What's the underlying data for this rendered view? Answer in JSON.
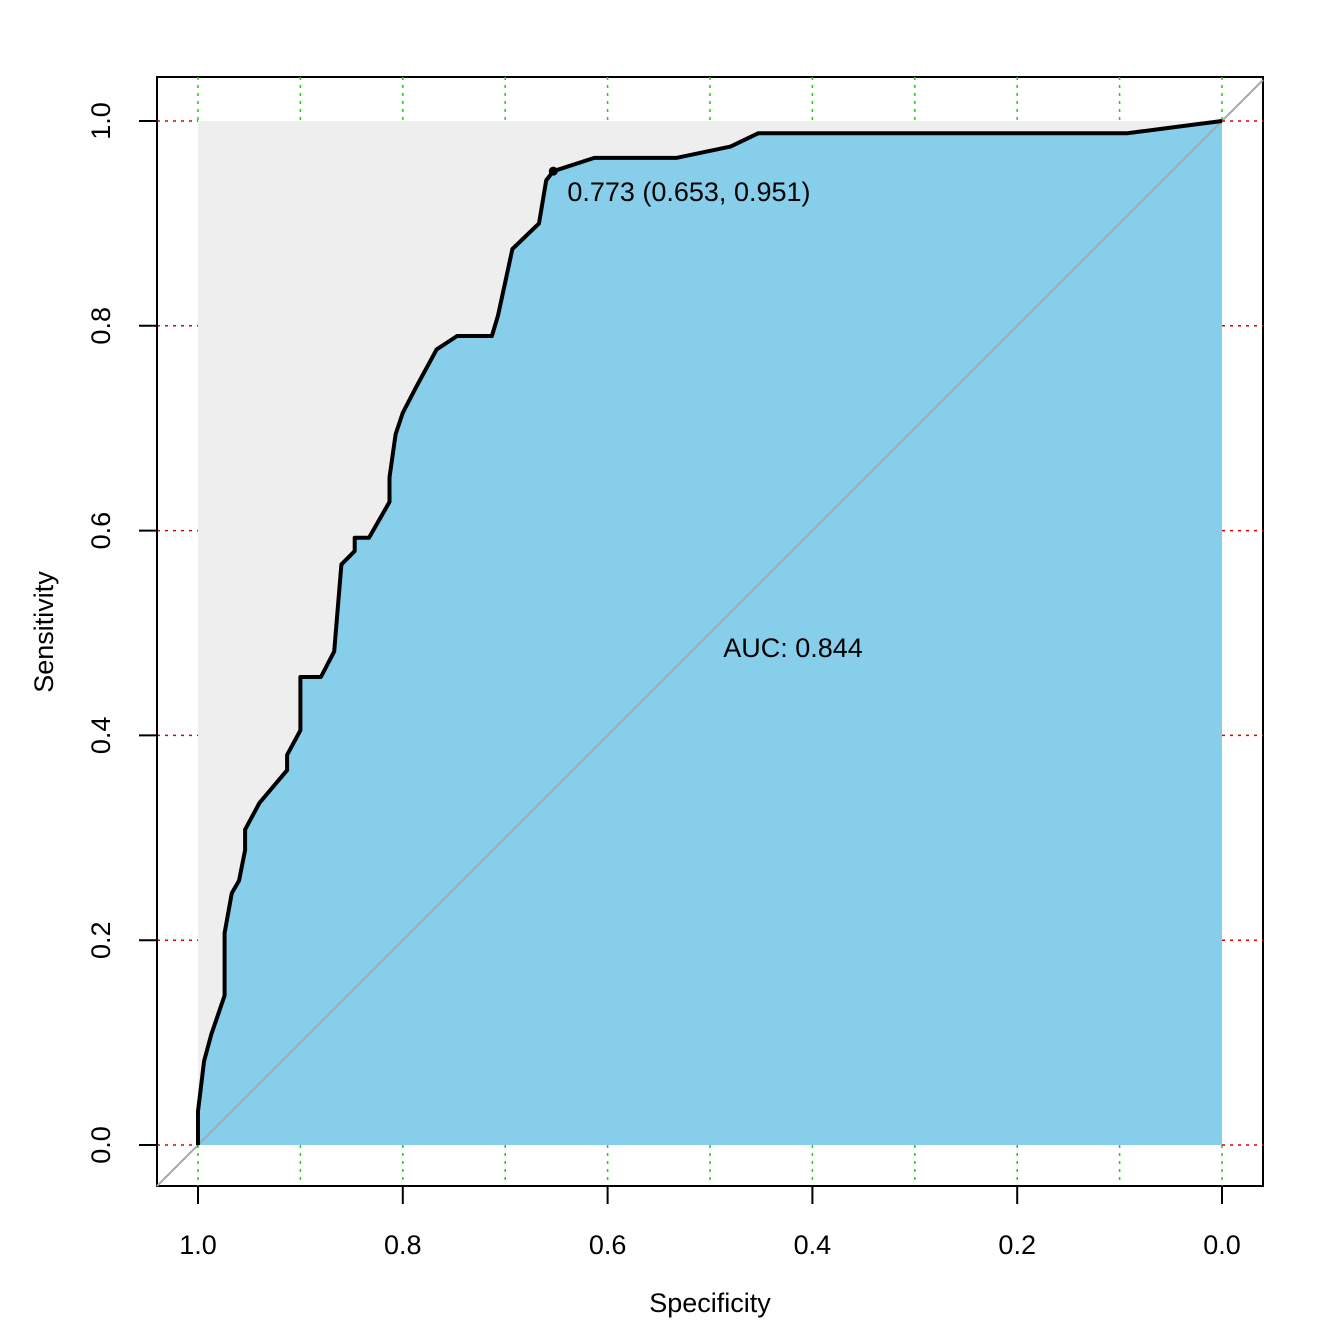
{
  "chart_data": {
    "type": "line",
    "xlabel": "Specificity",
    "ylabel": "Sensitivity",
    "xlim": [
      1.0,
      0.0
    ],
    "ylim": [
      0.0,
      1.0
    ],
    "x_reversed": true,
    "x_ticks": [
      "1.0",
      "0.8",
      "0.6",
      "0.4",
      "0.2",
      "0.0"
    ],
    "y_ticks": [
      "0.0",
      "0.2",
      "0.4",
      "0.6",
      "0.8",
      "1.0"
    ],
    "grid": true,
    "grid_x_values": [
      1.0,
      0.9,
      0.8,
      0.7,
      0.6,
      0.5,
      0.4,
      0.3,
      0.2,
      0.1,
      0.0
    ],
    "grid_y_values": [
      0.0,
      0.2,
      0.4,
      0.6,
      0.8,
      1.0
    ],
    "auc_text": "AUC: 0.844",
    "threshold_point": {
      "specificity": 0.653,
      "sensitivity": 0.951
    },
    "threshold_text": "0.773 (0.653, 0.951)",
    "colors": {
      "auc_fill": "#87CEEB",
      "background_fill": "#EEEEEE",
      "curve": "#000000",
      "diagonal": "#A9A9A9",
      "grid_x": "#00DD00",
      "grid_y": "#DD0000"
    },
    "series": [
      {
        "points": [
          [
            1.0,
            0.0
          ],
          [
            1.0,
            0.033
          ],
          [
            0.994,
            0.082
          ],
          [
            0.987,
            0.108
          ],
          [
            0.974,
            0.146
          ],
          [
            0.974,
            0.207
          ],
          [
            0.967,
            0.246
          ],
          [
            0.96,
            0.258
          ],
          [
            0.954,
            0.288
          ],
          [
            0.954,
            0.308
          ],
          [
            0.94,
            0.334
          ],
          [
            0.913,
            0.366
          ],
          [
            0.913,
            0.381
          ],
          [
            0.9,
            0.405
          ],
          [
            0.9,
            0.457
          ],
          [
            0.88,
            0.457
          ],
          [
            0.867,
            0.482
          ],
          [
            0.86,
            0.567
          ],
          [
            0.847,
            0.58
          ],
          [
            0.847,
            0.593
          ],
          [
            0.833,
            0.593
          ],
          [
            0.813,
            0.628
          ],
          [
            0.813,
            0.652
          ],
          [
            0.807,
            0.694
          ],
          [
            0.8,
            0.715
          ],
          [
            0.787,
            0.74
          ],
          [
            0.767,
            0.777
          ],
          [
            0.747,
            0.79
          ],
          [
            0.713,
            0.79
          ],
          [
            0.707,
            0.81
          ],
          [
            0.693,
            0.875
          ],
          [
            0.667,
            0.9
          ],
          [
            0.66,
            0.942
          ],
          [
            0.653,
            0.951
          ],
          [
            0.613,
            0.964
          ],
          [
            0.533,
            0.964
          ],
          [
            0.48,
            0.975
          ],
          [
            0.453,
            0.988
          ],
          [
            0.093,
            0.988
          ],
          [
            0.0,
            1.0
          ]
        ]
      }
    ]
  }
}
